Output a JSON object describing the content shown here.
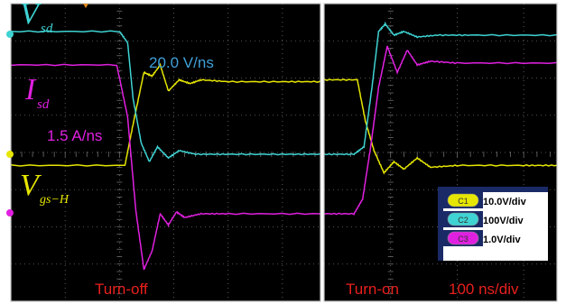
{
  "colors": {
    "background": "#000000",
    "grid": "#6e6e6e",
    "frame": "#c8c8c8",
    "ch1_yellow": "#e6e600",
    "ch2_cyan": "#3fd3d3",
    "ch3_magenta": "#e020e0",
    "annotation_red": "#e8201c",
    "annotation_blue": "#3fa0d8",
    "legend_bg": "#1a2a66"
  },
  "labels": {
    "vsd_main": "V",
    "vsd_sub": "sd",
    "isd_main": "I",
    "isd_sub": "sd",
    "vgs_main": "V",
    "vgs_sub": "gs−H",
    "slew_voltage": "20.0 V/ns",
    "slew_current": "1.5 A/ns",
    "turn_off": "Turn-off",
    "turn_on": "Turn-on",
    "timebase": "100 ns/div"
  },
  "legend": [
    {
      "badge": "C1",
      "text": "10.0V/div",
      "color": "#e6e600"
    },
    {
      "badge": "C2",
      "text": "100V/div",
      "color": "#3fd3d3"
    },
    {
      "badge": "C3",
      "text": "1.0V/div",
      "color": "#e020e0"
    }
  ],
  "chart_data": {
    "type": "line",
    "series": [
      {
        "channel": "C1",
        "name": "V",
        "scale": "10.0V/div",
        "turn_off": {
          "t": [
            0,
            2.1,
            2.25,
            2.45,
            2.6,
            2.75,
            2.9,
            3.1,
            3.3,
            3.5,
            4.0,
            5.0,
            5.7
          ],
          "v": [
            -0.3,
            -0.3,
            0.8,
            2.2,
            2.1,
            2.4,
            1.7,
            2.0,
            1.9,
            2.0,
            1.95,
            1.95,
            1.95
          ]
        },
        "turn_on": {
          "t": [
            0,
            0.5,
            0.62,
            0.75,
            0.9,
            1.05,
            1.2,
            1.4,
            1.6,
            2.0,
            3.0,
            3.5
          ],
          "v": [
            2.0,
            2.0,
            0.9,
            0.1,
            -0.5,
            -0.2,
            -0.4,
            -0.1,
            -0.35,
            -0.3,
            -0.3,
            -0.3
          ]
        }
      },
      {
        "channel": "C2",
        "name": "V",
        "scale": "100V/div",
        "turn_off": {
          "t": [
            0,
            2.0,
            2.15,
            2.25,
            2.4,
            2.55,
            2.7,
            2.9,
            3.1,
            3.4,
            4.0,
            5.0,
            5.7
          ],
          "v": [
            3.3,
            3.3,
            3.0,
            1.5,
            0.3,
            -0.2,
            0.2,
            -0.1,
            0.1,
            0.0,
            0.0,
            0.0,
            0.0
          ]
        },
        "turn_on": {
          "t": [
            0,
            0.45,
            0.6,
            0.72,
            0.82,
            0.92,
            1.05,
            1.2,
            1.4,
            1.7,
            2.2,
            3.5
          ],
          "v": [
            0.0,
            0.0,
            0.2,
            1.8,
            3.3,
            3.5,
            3.2,
            3.3,
            3.15,
            3.2,
            3.2,
            3.2
          ]
        }
      },
      {
        "channel": "C3",
        "name": "I",
        "scale": "1.0V/div",
        "turn_off": {
          "t": [
            0,
            1.95,
            2.15,
            2.3,
            2.45,
            2.6,
            2.75,
            2.9,
            3.05,
            3.2,
            3.5,
            4.0,
            5.7
          ],
          "v": [
            2.4,
            2.4,
            1.0,
            -1.5,
            -3.1,
            -2.6,
            -1.6,
            -1.9,
            -1.55,
            -1.7,
            -1.6,
            -1.6,
            -1.6
          ]
        },
        "turn_on": {
          "t": [
            0,
            0.45,
            0.58,
            0.7,
            0.82,
            0.95,
            1.1,
            1.25,
            1.4,
            1.6,
            2.0,
            3.5
          ],
          "v": [
            -1.6,
            -1.6,
            -1.2,
            0.2,
            1.8,
            2.9,
            2.2,
            2.8,
            2.4,
            2.5,
            2.45,
            2.45
          ]
        }
      }
    ],
    "annotations": [
      "20.0 V/ns",
      "1.5 A/ns",
      "Turn-off",
      "Turn-on",
      "100 ns/div"
    ],
    "grid": true
  }
}
